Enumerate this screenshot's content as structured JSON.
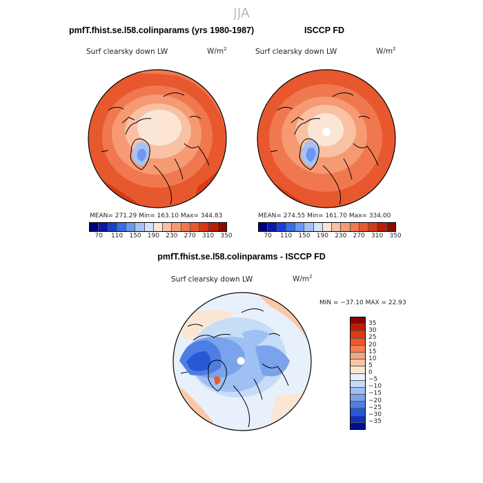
{
  "figure": {
    "season": "JJA"
  },
  "panels": {
    "model": {
      "title": "pmfT.fhist.se.l58.colinparams (yrs 1980-1987)",
      "variable": "Surf clearsky down LW",
      "units": "W/m",
      "units_exp": "2",
      "stats": "MEAN= 271.29   Min= 163.10   Max= 344.83"
    },
    "obs": {
      "title": "ISCCP FD",
      "variable": "Surf clearsky down LW",
      "units": "W/m",
      "units_exp": "2",
      "stats": "MEAN= 274.55   Min= 161.70   Max= 334.00"
    },
    "diff": {
      "title": "pmfT.fhist.se.l58.colinparams - ISCCP FD",
      "variable": "Surf clearsky down LW",
      "units": "W/m",
      "units_exp": "2",
      "stats": "MIN = −37.10  MAX =  22.93"
    }
  },
  "chart_data": [
    {
      "type": "heatmap",
      "projection": "north-polar-stereographic",
      "title": "pmfT.fhist.se.l58.colinparams (yrs 1980-1987)",
      "variable": "Surf clearsky down LW",
      "units": "W/m2",
      "mean": 271.29,
      "min": 163.1,
      "max": 344.83,
      "colorbar_levels": [
        70,
        110,
        150,
        190,
        230,
        270,
        310,
        350
      ],
      "colorbar_colors": [
        "#00007f",
        "#0a1aa8",
        "#1c3fcf",
        "#3b6de6",
        "#6e97f0",
        "#a6c3f5",
        "#d3e3f8",
        "#fbe6d6",
        "#f9c1a4",
        "#f59a72",
        "#f0784f",
        "#e8582f",
        "#d83a14",
        "#b81c06",
        "#8a0c00"
      ],
      "legend_placement": "bottom"
    },
    {
      "type": "heatmap",
      "projection": "north-polar-stereographic",
      "title": "ISCCP FD",
      "variable": "Surf clearsky down LW",
      "units": "W/m2",
      "mean": 274.55,
      "min": 161.7,
      "max": 334.0,
      "colorbar_levels": [
        70,
        110,
        150,
        190,
        230,
        270,
        310,
        350
      ],
      "colorbar_colors": [
        "#00007f",
        "#0a1aa8",
        "#1c3fcf",
        "#3b6de6",
        "#6e97f0",
        "#a6c3f5",
        "#d3e3f8",
        "#fbe6d6",
        "#f9c1a4",
        "#f59a72",
        "#f0784f",
        "#e8582f",
        "#d83a14",
        "#b81c06",
        "#8a0c00"
      ],
      "legend_placement": "bottom"
    },
    {
      "type": "heatmap",
      "projection": "north-polar-stereographic",
      "title": "pmfT.fhist.se.l58.colinparams - ISCCP FD",
      "variable": "Surf clearsky down LW",
      "units": "W/m2",
      "min": -37.1,
      "max": 22.93,
      "colorbar_levels": [
        "35",
        "30",
        "25",
        "20",
        "15",
        "10",
        "5",
        "0",
        "−5",
        "−10",
        "−15",
        "−20",
        "−25",
        "−30",
        "−35"
      ],
      "colorbar_colors": [
        "#8a0000",
        "#c01a00",
        "#dd3a10",
        "#ee5a2a",
        "#f47f52",
        "#f7a57e",
        "#f8c8a8",
        "#fbe6d4",
        "#e8f0fb",
        "#c6dcf7",
        "#9ec0f2",
        "#7aa3ec",
        "#4f7ee3",
        "#2a57d4",
        "#1032b8",
        "#00108a"
      ],
      "legend_placement": "right"
    }
  ]
}
